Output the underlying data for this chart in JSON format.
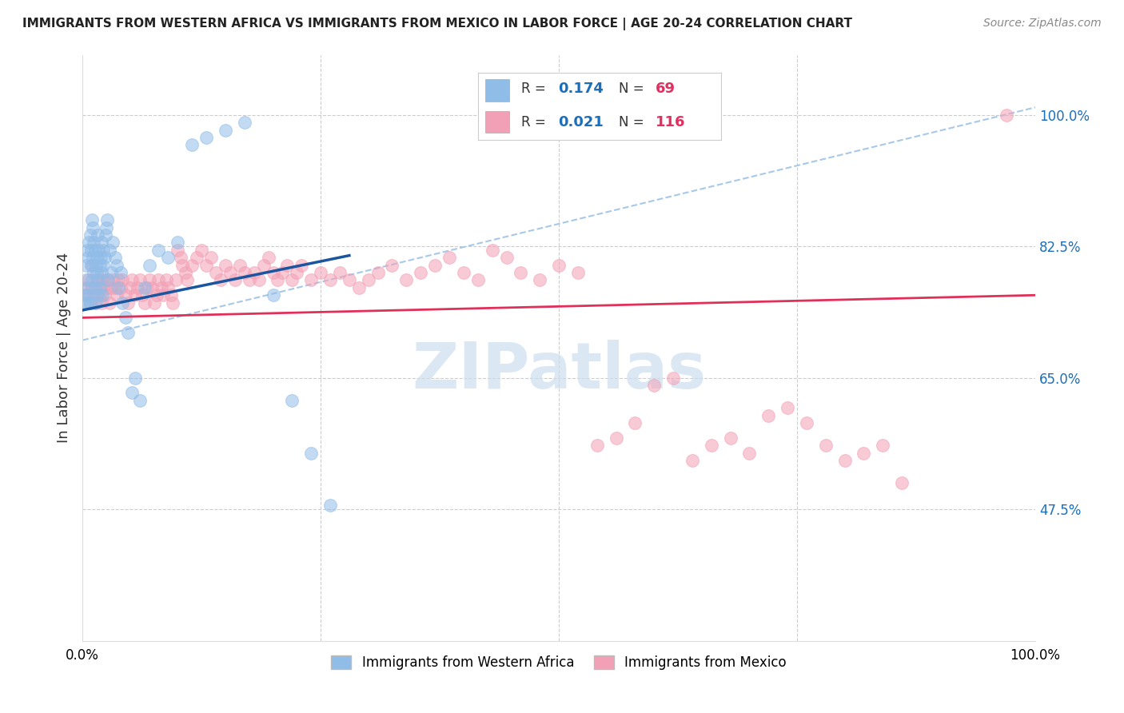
{
  "title": "IMMIGRANTS FROM WESTERN AFRICA VS IMMIGRANTS FROM MEXICO IN LABOR FORCE | AGE 20-24 CORRELATION CHART",
  "source": "Source: ZipAtlas.com",
  "ylabel": "In Labor Force | Age 20-24",
  "xlim": [
    0.0,
    1.0
  ],
  "ylim": [
    0.3,
    1.08
  ],
  "ytick_positions": [
    0.475,
    0.65,
    0.825,
    1.0
  ],
  "ytick_labels": [
    "47.5%",
    "65.0%",
    "82.5%",
    "100.0%"
  ],
  "r_blue": 0.174,
  "n_blue": 69,
  "r_pink": 0.021,
  "n_pink": 116,
  "blue_color": "#90bce8",
  "pink_color": "#f2a0b5",
  "line_blue": "#1a55a0",
  "line_pink": "#e0305a",
  "dashed_line_color": "#a8c8e8",
  "legend_r_color": "#1a6fbd",
  "legend_n_color": "#e03060",
  "watermark": "ZIPatlas",
  "watermark_color": "#ccdff0",
  "blue_scatter_x": [
    0.002,
    0.003,
    0.004,
    0.004,
    0.005,
    0.005,
    0.006,
    0.006,
    0.007,
    0.007,
    0.008,
    0.008,
    0.009,
    0.009,
    0.01,
    0.01,
    0.011,
    0.011,
    0.012,
    0.012,
    0.013,
    0.013,
    0.014,
    0.014,
    0.015,
    0.015,
    0.016,
    0.016,
    0.017,
    0.017,
    0.018,
    0.018,
    0.019,
    0.02,
    0.02,
    0.021,
    0.022,
    0.022,
    0.023,
    0.024,
    0.025,
    0.026,
    0.027,
    0.028,
    0.03,
    0.032,
    0.034,
    0.036,
    0.038,
    0.04,
    0.042,
    0.045,
    0.048,
    0.052,
    0.055,
    0.06,
    0.065,
    0.07,
    0.08,
    0.09,
    0.1,
    0.115,
    0.13,
    0.15,
    0.17,
    0.2,
    0.22,
    0.24,
    0.26
  ],
  "blue_scatter_y": [
    0.75,
    0.76,
    0.8,
    0.78,
    0.82,
    0.75,
    0.81,
    0.77,
    0.83,
    0.76,
    0.84,
    0.75,
    0.82,
    0.8,
    0.86,
    0.78,
    0.85,
    0.81,
    0.79,
    0.83,
    0.77,
    0.82,
    0.8,
    0.75,
    0.79,
    0.81,
    0.76,
    0.84,
    0.78,
    0.82,
    0.8,
    0.77,
    0.81,
    0.79,
    0.83,
    0.76,
    0.8,
    0.82,
    0.81,
    0.84,
    0.85,
    0.86,
    0.78,
    0.82,
    0.79,
    0.83,
    0.81,
    0.8,
    0.77,
    0.79,
    0.75,
    0.73,
    0.71,
    0.63,
    0.65,
    0.62,
    0.77,
    0.8,
    0.82,
    0.81,
    0.83,
    0.96,
    0.97,
    0.98,
    0.99,
    0.76,
    0.62,
    0.55,
    0.48
  ],
  "pink_scatter_x": [
    0.003,
    0.005,
    0.007,
    0.008,
    0.01,
    0.01,
    0.012,
    0.013,
    0.015,
    0.016,
    0.018,
    0.019,
    0.02,
    0.021,
    0.022,
    0.023,
    0.025,
    0.026,
    0.028,
    0.03,
    0.032,
    0.034,
    0.036,
    0.038,
    0.04,
    0.042,
    0.045,
    0.048,
    0.05,
    0.052,
    0.055,
    0.058,
    0.06,
    0.063,
    0.065,
    0.068,
    0.07,
    0.073,
    0.075,
    0.078,
    0.08,
    0.083,
    0.085,
    0.088,
    0.09,
    0.093,
    0.095,
    0.098,
    0.1,
    0.103,
    0.105,
    0.108,
    0.11,
    0.115,
    0.12,
    0.125,
    0.13,
    0.135,
    0.14,
    0.145,
    0.15,
    0.155,
    0.16,
    0.165,
    0.17,
    0.175,
    0.18,
    0.185,
    0.19,
    0.195,
    0.2,
    0.205,
    0.21,
    0.215,
    0.22,
    0.225,
    0.23,
    0.24,
    0.25,
    0.26,
    0.27,
    0.28,
    0.29,
    0.3,
    0.31,
    0.325,
    0.34,
    0.355,
    0.37,
    0.385,
    0.4,
    0.415,
    0.43,
    0.445,
    0.46,
    0.48,
    0.5,
    0.52,
    0.54,
    0.56,
    0.58,
    0.6,
    0.62,
    0.64,
    0.66,
    0.68,
    0.7,
    0.72,
    0.74,
    0.76,
    0.78,
    0.8,
    0.82,
    0.84,
    0.86,
    0.97
  ],
  "pink_scatter_y": [
    0.77,
    0.76,
    0.78,
    0.75,
    0.77,
    0.8,
    0.76,
    0.75,
    0.78,
    0.77,
    0.76,
    0.78,
    0.75,
    0.77,
    0.78,
    0.76,
    0.77,
    0.78,
    0.75,
    0.77,
    0.78,
    0.77,
    0.76,
    0.78,
    0.77,
    0.78,
    0.76,
    0.75,
    0.77,
    0.78,
    0.76,
    0.77,
    0.78,
    0.76,
    0.75,
    0.77,
    0.78,
    0.77,
    0.75,
    0.76,
    0.78,
    0.77,
    0.76,
    0.78,
    0.77,
    0.76,
    0.75,
    0.78,
    0.82,
    0.81,
    0.8,
    0.79,
    0.78,
    0.8,
    0.81,
    0.82,
    0.8,
    0.81,
    0.79,
    0.78,
    0.8,
    0.79,
    0.78,
    0.8,
    0.79,
    0.78,
    0.79,
    0.78,
    0.8,
    0.81,
    0.79,
    0.78,
    0.79,
    0.8,
    0.78,
    0.79,
    0.8,
    0.78,
    0.79,
    0.78,
    0.79,
    0.78,
    0.77,
    0.78,
    0.79,
    0.8,
    0.78,
    0.79,
    0.8,
    0.81,
    0.79,
    0.78,
    0.82,
    0.81,
    0.79,
    0.78,
    0.8,
    0.79,
    0.56,
    0.57,
    0.59,
    0.64,
    0.65,
    0.54,
    0.56,
    0.57,
    0.55,
    0.6,
    0.61,
    0.59,
    0.56,
    0.54,
    0.55,
    0.56,
    0.51,
    1.0
  ]
}
